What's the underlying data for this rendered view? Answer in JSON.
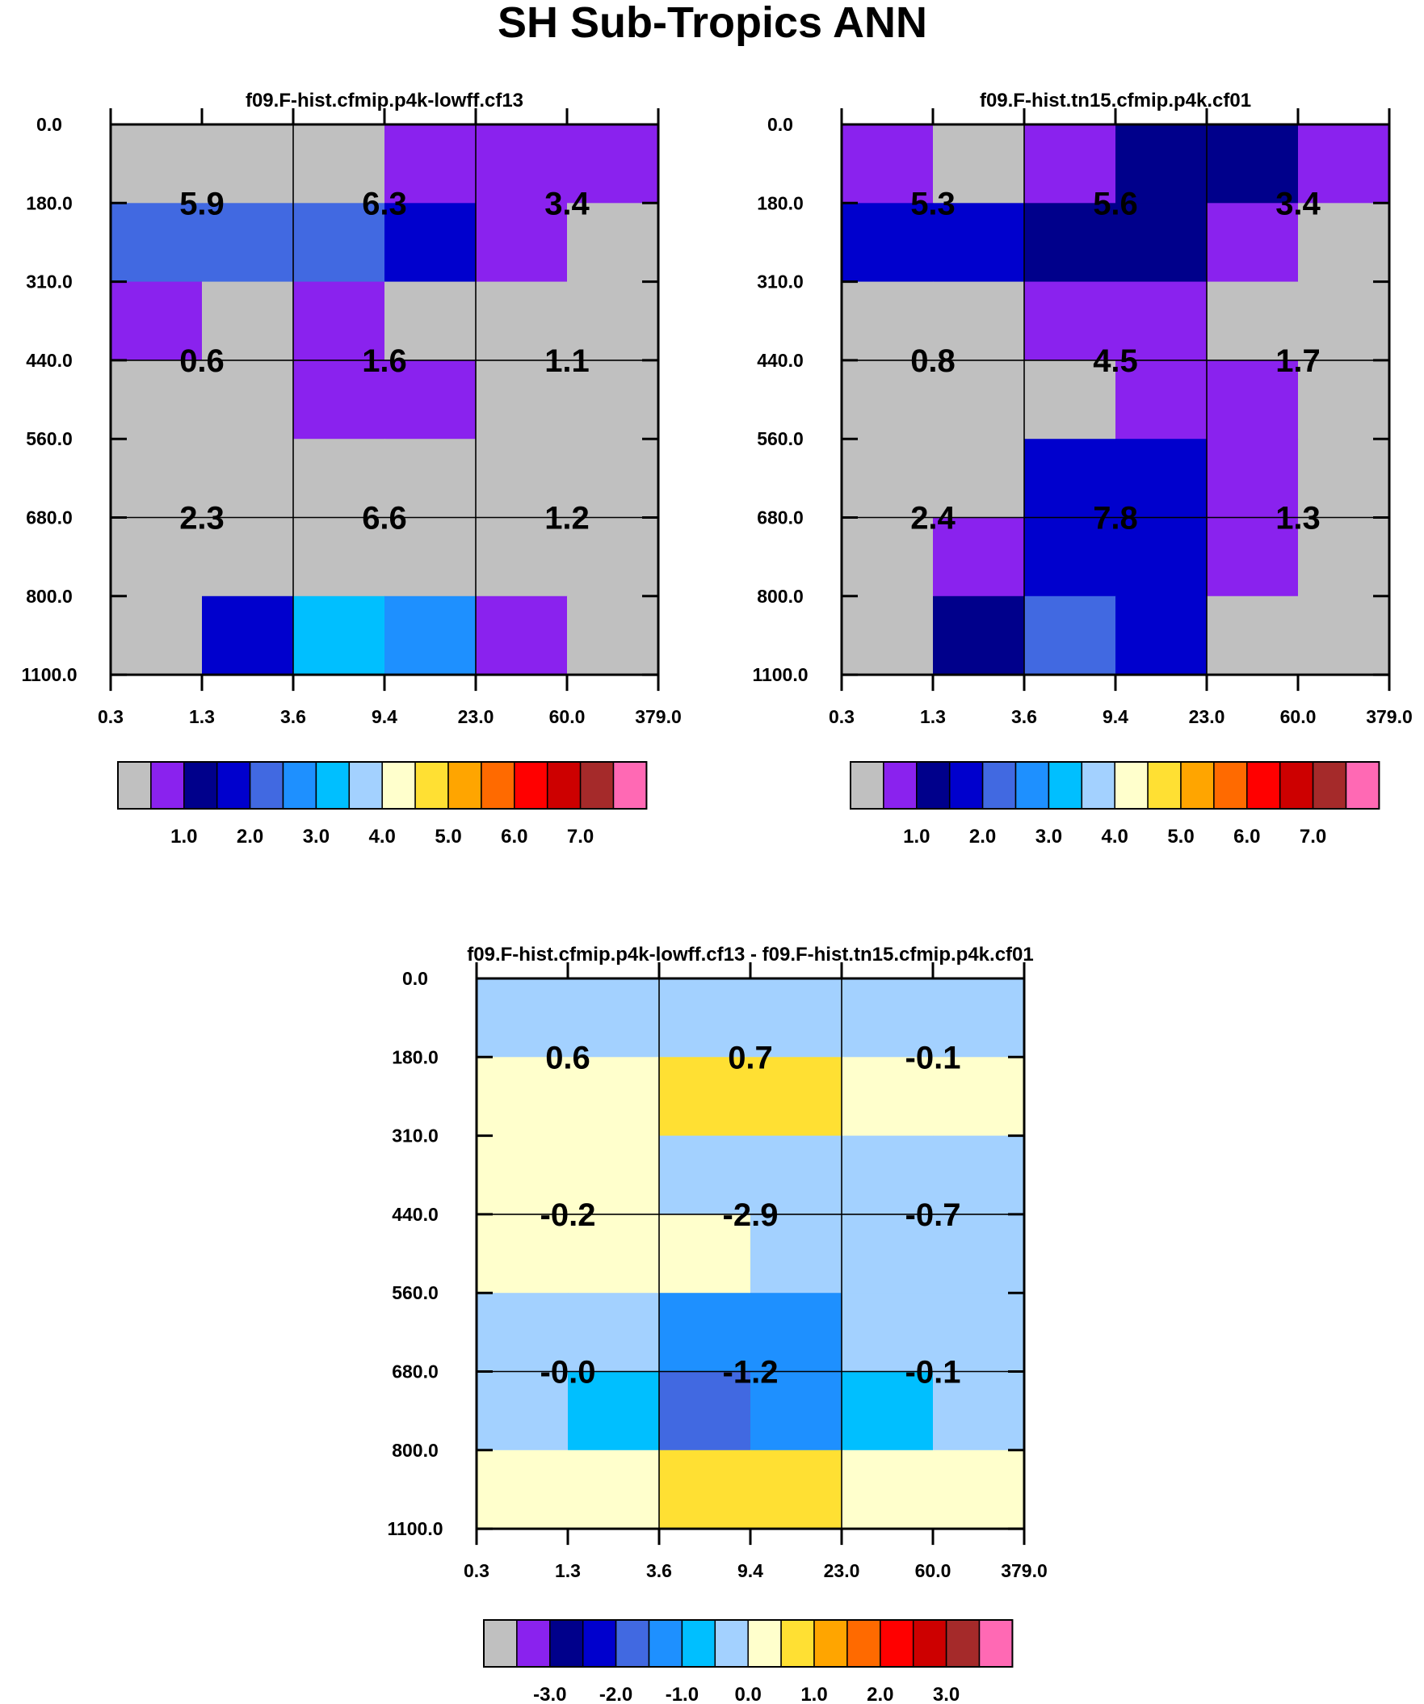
{
  "title": "SH Sub-Tropics ANN",
  "chart_data": [
    {
      "type": "heatmap",
      "id": "panel1",
      "title": "f09.F-hist.cfmip.p4k-lowff.cf13",
      "x_ticks": [
        "0.3",
        "1.3",
        "3.6",
        "9.4",
        "23.0",
        "60.0",
        "379.0"
      ],
      "y_ticks": [
        "0.0",
        "180.0",
        "310.0",
        "440.0",
        "560.0",
        "680.0",
        "800.0",
        "1100.0"
      ],
      "cell_colors": [
        [
          "#c0c0c0",
          "#c0c0c0",
          "#c0c0c0",
          "#8a22ee",
          "#8a22ee",
          "#8a22ee"
        ],
        [
          "#4169e1",
          "#4169e1",
          "#4169e1",
          "#0000cd",
          "#8a22ee",
          "#c0c0c0"
        ],
        [
          "#8a22ee",
          "#c0c0c0",
          "#8a22ee",
          "#c0c0c0",
          "#c0c0c0",
          "#c0c0c0"
        ],
        [
          "#c0c0c0",
          "#c0c0c0",
          "#8a22ee",
          "#8a22ee",
          "#c0c0c0",
          "#c0c0c0"
        ],
        [
          "#c0c0c0",
          "#c0c0c0",
          "#c0c0c0",
          "#c0c0c0",
          "#c0c0c0",
          "#c0c0c0"
        ],
        [
          "#c0c0c0",
          "#c0c0c0",
          "#c0c0c0",
          "#c0c0c0",
          "#c0c0c0",
          "#c0c0c0"
        ],
        [
          "#c0c0c0",
          "#0000cd",
          "#00bfff",
          "#1e90ff",
          "#8a22ee",
          "#c0c0c0"
        ]
      ],
      "region_labels": [
        [
          "5.9",
          "6.3",
          "3.4"
        ],
        [
          "0.6",
          "1.6",
          "1.1"
        ],
        [
          "2.3",
          "6.6",
          "1.2"
        ]
      ],
      "colorbar": {
        "colors": [
          "#c0c0c0",
          "#8a22ee",
          "#00008b",
          "#0000cd",
          "#4169e1",
          "#1e90ff",
          "#00bfff",
          "#a3d1ff",
          "#ffffcc",
          "#ffe033",
          "#ffa500",
          "#ff6a00",
          "#ff0000",
          "#cd0000",
          "#a52a2a",
          "#ff69b4"
        ],
        "labels": [
          "1.0",
          "2.0",
          "3.0",
          "4.0",
          "5.0",
          "6.0",
          "7.0"
        ],
        "first_label_boundary": 2
      }
    },
    {
      "type": "heatmap",
      "id": "panel2",
      "title": "f09.F-hist.tn15.cfmip.p4k.cf01",
      "x_ticks": [
        "0.3",
        "1.3",
        "3.6",
        "9.4",
        "23.0",
        "60.0",
        "379.0"
      ],
      "y_ticks": [
        "0.0",
        "180.0",
        "310.0",
        "440.0",
        "560.0",
        "680.0",
        "800.0",
        "1100.0"
      ],
      "cell_colors": [
        [
          "#8a22ee",
          "#c0c0c0",
          "#8a22ee",
          "#00008b",
          "#00008b",
          "#8a22ee"
        ],
        [
          "#0000cd",
          "#0000cd",
          "#00008b",
          "#00008b",
          "#8a22ee",
          "#c0c0c0"
        ],
        [
          "#c0c0c0",
          "#c0c0c0",
          "#8a22ee",
          "#8a22ee",
          "#c0c0c0",
          "#c0c0c0"
        ],
        [
          "#c0c0c0",
          "#c0c0c0",
          "#c0c0c0",
          "#8a22ee",
          "#8a22ee",
          "#c0c0c0"
        ],
        [
          "#c0c0c0",
          "#c0c0c0",
          "#0000cd",
          "#0000cd",
          "#8a22ee",
          "#c0c0c0"
        ],
        [
          "#c0c0c0",
          "#8a22ee",
          "#0000cd",
          "#0000cd",
          "#8a22ee",
          "#c0c0c0"
        ],
        [
          "#c0c0c0",
          "#00008b",
          "#4169e1",
          "#0000cd",
          "#c0c0c0",
          "#c0c0c0"
        ]
      ],
      "region_labels": [
        [
          "5.3",
          "5.6",
          "3.4"
        ],
        [
          "0.8",
          "4.5",
          "1.7"
        ],
        [
          "2.4",
          "7.8",
          "1.3"
        ]
      ],
      "colorbar": {
        "colors": [
          "#c0c0c0",
          "#8a22ee",
          "#00008b",
          "#0000cd",
          "#4169e1",
          "#1e90ff",
          "#00bfff",
          "#a3d1ff",
          "#ffffcc",
          "#ffe033",
          "#ffa500",
          "#ff6a00",
          "#ff0000",
          "#cd0000",
          "#a52a2a",
          "#ff69b4"
        ],
        "labels": [
          "1.0",
          "2.0",
          "3.0",
          "4.0",
          "5.0",
          "6.0",
          "7.0"
        ],
        "first_label_boundary": 2
      }
    },
    {
      "type": "heatmap",
      "id": "panel3",
      "title": "f09.F-hist.cfmip.p4k-lowff.cf13 - f09.F-hist.tn15.cfmip.p4k.cf01",
      "x_ticks": [
        "0.3",
        "1.3",
        "3.6",
        "9.4",
        "23.0",
        "60.0",
        "379.0"
      ],
      "y_ticks": [
        "0.0",
        "180.0",
        "310.0",
        "440.0",
        "560.0",
        "680.0",
        "800.0",
        "1100.0"
      ],
      "cell_colors": [
        [
          "#a3d1ff",
          "#a3d1ff",
          "#a3d1ff",
          "#a3d1ff",
          "#a3d1ff",
          "#a3d1ff"
        ],
        [
          "#ffffcc",
          "#ffffcc",
          "#ffe033",
          "#ffe033",
          "#ffffcc",
          "#ffffcc"
        ],
        [
          "#ffffcc",
          "#ffffcc",
          "#a3d1ff",
          "#a3d1ff",
          "#a3d1ff",
          "#a3d1ff"
        ],
        [
          "#ffffcc",
          "#ffffcc",
          "#ffffcc",
          "#a3d1ff",
          "#a3d1ff",
          "#a3d1ff"
        ],
        [
          "#a3d1ff",
          "#a3d1ff",
          "#1e90ff",
          "#1e90ff",
          "#a3d1ff",
          "#a3d1ff"
        ],
        [
          "#a3d1ff",
          "#00bfff",
          "#4169e1",
          "#1e90ff",
          "#00bfff",
          "#a3d1ff"
        ],
        [
          "#ffffcc",
          "#ffffcc",
          "#ffe033",
          "#ffe033",
          "#ffffcc",
          "#ffffcc"
        ]
      ],
      "region_labels": [
        [
          "0.6",
          "0.7",
          "-0.1"
        ],
        [
          "-0.2",
          "-2.9",
          "-0.7"
        ],
        [
          "-0.0",
          "-1.2",
          "-0.1"
        ]
      ],
      "colorbar": {
        "colors": [
          "#c0c0c0",
          "#8a22ee",
          "#00008b",
          "#0000cd",
          "#4169e1",
          "#1e90ff",
          "#00bfff",
          "#a3d1ff",
          "#ffffcc",
          "#ffe033",
          "#ffa500",
          "#ff6a00",
          "#ff0000",
          "#cd0000",
          "#a52a2a",
          "#ff69b4"
        ],
        "labels": [
          "-3.0",
          "-2.0",
          "-1.0",
          "0.0",
          "1.0",
          "2.0",
          "3.0"
        ],
        "first_label_boundary": 2
      }
    }
  ]
}
